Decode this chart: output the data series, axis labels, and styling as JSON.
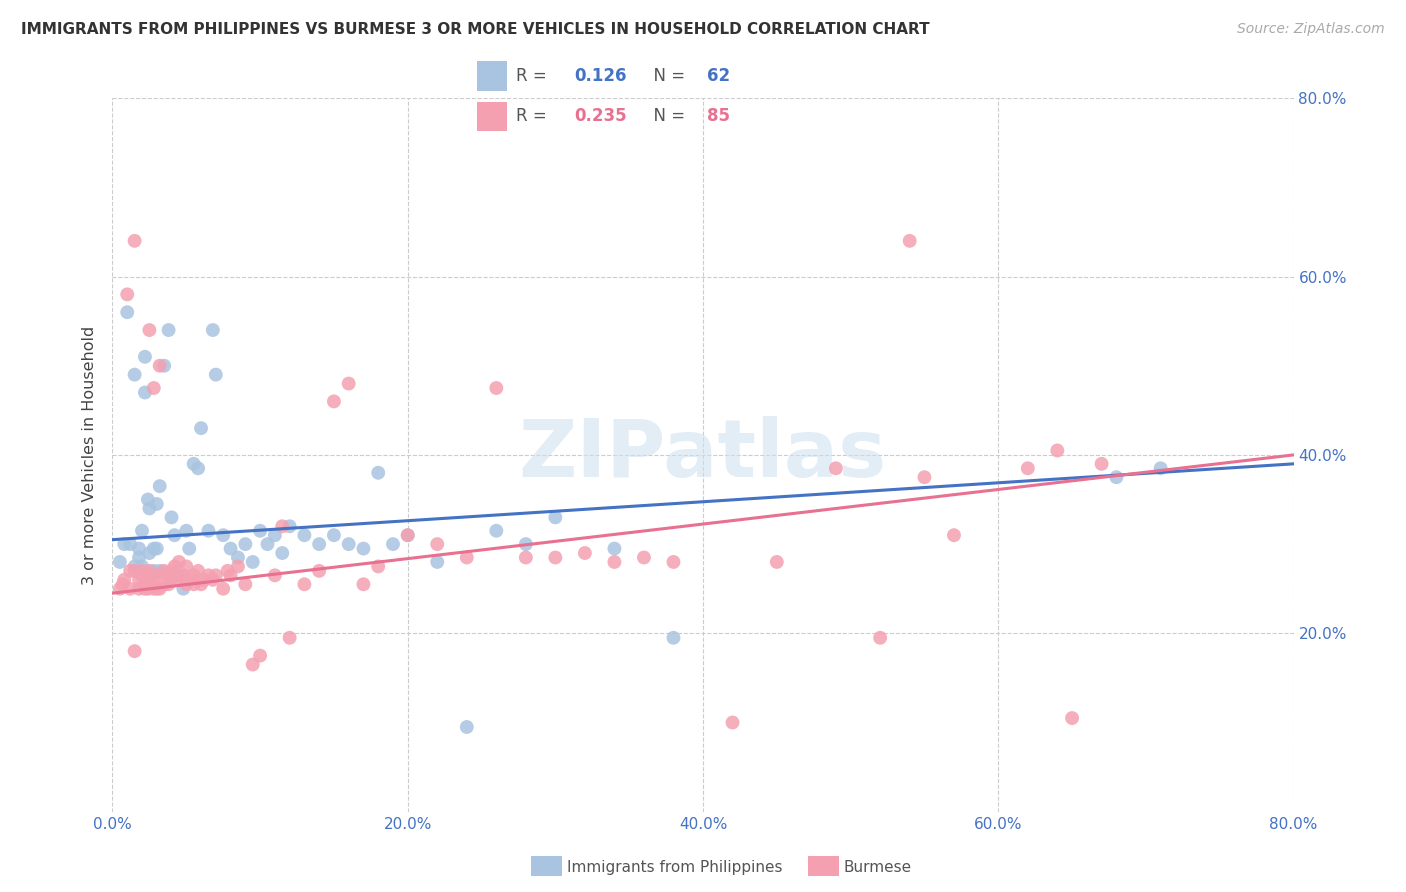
{
  "title": "IMMIGRANTS FROM PHILIPPINES VS BURMESE 3 OR MORE VEHICLES IN HOUSEHOLD CORRELATION CHART",
  "source": "Source: ZipAtlas.com",
  "ylabel": "3 or more Vehicles in Household",
  "xlim": [
    0.0,
    0.8
  ],
  "ylim": [
    0.0,
    0.8
  ],
  "xticks": [
    0.0,
    0.2,
    0.4,
    0.6,
    0.8
  ],
  "yticks": [
    0.2,
    0.4,
    0.6,
    0.8
  ],
  "xticklabels": [
    "0.0%",
    "20.0%",
    "40.0%",
    "60.0%",
    "80.0%"
  ],
  "right_yticklabels": [
    "20.0%",
    "40.0%",
    "60.0%",
    "80.0%"
  ],
  "color_philippines": "#a8c4e0",
  "color_burmese": "#f4a0b0",
  "line_color_philippines": "#4472c4",
  "line_color_burmese": "#e87090",
  "R_philippines": 0.126,
  "N_philippines": 62,
  "R_burmese": 0.235,
  "N_burmese": 85,
  "watermark": "ZIPatlas",
  "legend_label_philippines": "Immigrants from Philippines",
  "legend_label_burmese": "Burmese",
  "line_phil_x0": 0.0,
  "line_phil_y0": 0.305,
  "line_phil_x1": 0.8,
  "line_phil_y1": 0.39,
  "line_burm_x0": 0.0,
  "line_burm_y0": 0.245,
  "line_burm_x1": 0.8,
  "line_burm_y1": 0.4,
  "philippines_x": [
    0.005,
    0.008,
    0.01,
    0.012,
    0.015,
    0.015,
    0.018,
    0.018,
    0.02,
    0.02,
    0.022,
    0.022,
    0.024,
    0.025,
    0.025,
    0.028,
    0.028,
    0.03,
    0.03,
    0.032,
    0.032,
    0.035,
    0.038,
    0.04,
    0.042,
    0.045,
    0.048,
    0.05,
    0.052,
    0.055,
    0.058,
    0.06,
    0.065,
    0.068,
    0.07,
    0.075,
    0.08,
    0.085,
    0.09,
    0.095,
    0.1,
    0.105,
    0.11,
    0.115,
    0.12,
    0.13,
    0.14,
    0.15,
    0.16,
    0.17,
    0.18,
    0.19,
    0.2,
    0.22,
    0.24,
    0.26,
    0.28,
    0.3,
    0.34,
    0.38,
    0.68,
    0.71
  ],
  "philippines_y": [
    0.28,
    0.3,
    0.56,
    0.3,
    0.275,
    0.49,
    0.295,
    0.285,
    0.315,
    0.275,
    0.51,
    0.47,
    0.35,
    0.34,
    0.29,
    0.295,
    0.27,
    0.345,
    0.295,
    0.365,
    0.27,
    0.5,
    0.54,
    0.33,
    0.31,
    0.265,
    0.25,
    0.315,
    0.295,
    0.39,
    0.385,
    0.43,
    0.315,
    0.54,
    0.49,
    0.31,
    0.295,
    0.285,
    0.3,
    0.28,
    0.315,
    0.3,
    0.31,
    0.29,
    0.32,
    0.31,
    0.3,
    0.31,
    0.3,
    0.295,
    0.38,
    0.3,
    0.31,
    0.28,
    0.095,
    0.315,
    0.3,
    0.33,
    0.295,
    0.195,
    0.375,
    0.385
  ],
  "burmese_x": [
    0.005,
    0.007,
    0.008,
    0.01,
    0.012,
    0.012,
    0.015,
    0.015,
    0.015,
    0.018,
    0.018,
    0.02,
    0.02,
    0.022,
    0.022,
    0.024,
    0.024,
    0.025,
    0.025,
    0.028,
    0.028,
    0.028,
    0.03,
    0.03,
    0.032,
    0.032,
    0.035,
    0.035,
    0.038,
    0.038,
    0.04,
    0.04,
    0.042,
    0.042,
    0.045,
    0.045,
    0.048,
    0.05,
    0.05,
    0.052,
    0.055,
    0.055,
    0.058,
    0.06,
    0.062,
    0.065,
    0.068,
    0.07,
    0.075,
    0.078,
    0.08,
    0.085,
    0.09,
    0.095,
    0.1,
    0.11,
    0.115,
    0.12,
    0.13,
    0.14,
    0.15,
    0.16,
    0.17,
    0.18,
    0.2,
    0.22,
    0.24,
    0.26,
    0.28,
    0.3,
    0.32,
    0.34,
    0.36,
    0.38,
    0.42,
    0.45,
    0.49,
    0.52,
    0.54,
    0.55,
    0.57,
    0.62,
    0.64,
    0.65,
    0.67
  ],
  "burmese_y": [
    0.25,
    0.255,
    0.26,
    0.58,
    0.27,
    0.25,
    0.64,
    0.27,
    0.18,
    0.26,
    0.25,
    0.27,
    0.265,
    0.255,
    0.25,
    0.26,
    0.25,
    0.54,
    0.27,
    0.475,
    0.265,
    0.25,
    0.25,
    0.265,
    0.5,
    0.25,
    0.27,
    0.255,
    0.265,
    0.255,
    0.27,
    0.26,
    0.275,
    0.265,
    0.28,
    0.26,
    0.265,
    0.255,
    0.275,
    0.26,
    0.265,
    0.255,
    0.27,
    0.255,
    0.26,
    0.265,
    0.26,
    0.265,
    0.25,
    0.27,
    0.265,
    0.275,
    0.255,
    0.165,
    0.175,
    0.265,
    0.32,
    0.195,
    0.255,
    0.27,
    0.46,
    0.48,
    0.255,
    0.275,
    0.31,
    0.3,
    0.285,
    0.475,
    0.285,
    0.285,
    0.29,
    0.28,
    0.285,
    0.28,
    0.1,
    0.28,
    0.385,
    0.195,
    0.64,
    0.375,
    0.31,
    0.385,
    0.405,
    0.105,
    0.39
  ]
}
